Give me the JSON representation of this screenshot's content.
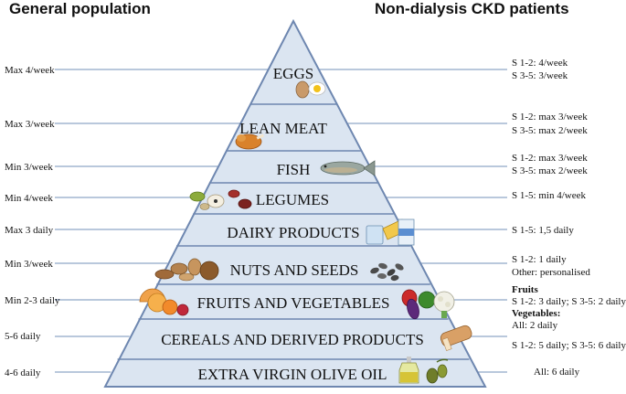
{
  "headers": {
    "left": "General population",
    "right": "Non-dialysis CKD patients"
  },
  "tiers": [
    {
      "label": "EGGS",
      "general": "Max 4/week",
      "ckd": [
        "S 1-2: 4/week",
        "S 3-5: 3/week"
      ]
    },
    {
      "label": "LEAN MEAT",
      "general": "Max 3/week",
      "ckd": [
        "S 1-2: max 3/week",
        "S 3-5: max 2/week"
      ]
    },
    {
      "label": "FISH",
      "general": "Min 3/week",
      "ckd": [
        "S 1-2: max 3/week",
        "S 3-5: max 2/week"
      ]
    },
    {
      "label": "LEGUMES",
      "general": "Min 4/week",
      "ckd": [
        "S 1-5: min 4/week"
      ]
    },
    {
      "label": "DAIRY PRODUCTS",
      "general": "Max 3 daily",
      "ckd": [
        "S 1-5: 1,5 daily"
      ]
    },
    {
      "label": "NUTS AND SEEDS",
      "general": "Min 3/week",
      "ckd": [
        "S 1-2: 1 daily",
        "Other: personalised"
      ]
    },
    {
      "label": "FRUITS AND VEGETABLES",
      "general": "Min 2-3 daily",
      "ckd": [
        "Fruits",
        "S 1-2: 3 daily; S 3-5: 2 daily",
        "Vegetables:",
        "All: 2 daily"
      ]
    },
    {
      "label": "CEREALS AND DERIVED PRODUCTS",
      "general": "5-6 daily",
      "ckd": [
        "S 1-2: 5 daily; S 3-5: 6 daily"
      ]
    },
    {
      "label": "EXTRA VIRGIN OLIVE OIL",
      "general": "4-6 daily",
      "ckd": [
        "All: 6 daily"
      ]
    }
  ],
  "icons": [
    "egg-icon",
    "chicken-icon",
    "fish-icon",
    "beans-icon",
    "dairy-icon",
    "nuts-icon",
    "seeds-icon",
    "fruit-icon",
    "vegetables-icon",
    "bread-icon",
    "oil-bottle-icon",
    "olives-icon"
  ],
  "colors": {
    "pyramid_fill": "#dbe5f1",
    "pyramid_stroke": "#6e87b0",
    "connector": "#8fa6c8"
  }
}
